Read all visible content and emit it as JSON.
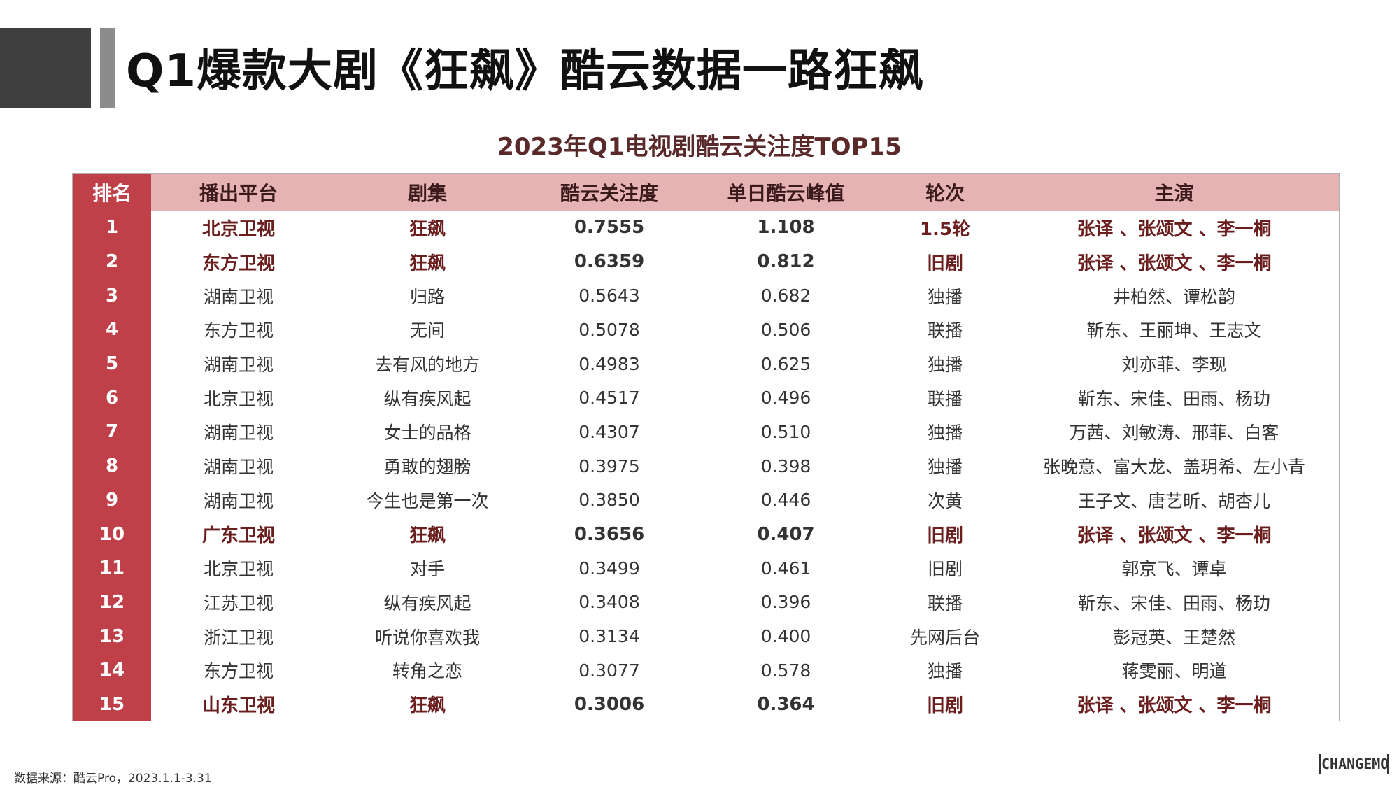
{
  "page": {
    "title": "Q1爆款大剧《狂飙》酷云数据一路狂飙",
    "source_note": "数据来源：酷云Pro，2023.1.1-3.31",
    "logo_text": "CHANGEMO"
  },
  "table": {
    "title": "2023年Q1电视剧酷云关注度TOP15",
    "headers": [
      "排名",
      "播出平台",
      "剧集",
      "酷云关注度",
      "单日酷云峰值",
      "轮次",
      "主演"
    ],
    "rows": [
      {
        "rank": "1",
        "platform": "北京卫视",
        "drama": "狂飙",
        "attention": "0.7555",
        "peak": "1.108",
        "round": "1.5轮",
        "cast": "张译 、张颂文 、李一桐",
        "highlight": true
      },
      {
        "rank": "2",
        "platform": "东方卫视",
        "drama": "狂飙",
        "attention": "0.6359",
        "peak": "0.812",
        "round": "旧剧",
        "cast": "张译 、张颂文 、李一桐",
        "highlight": true
      },
      {
        "rank": "3",
        "platform": "湖南卫视",
        "drama": "归路",
        "attention": "0.5643",
        "peak": "0.682",
        "round": "独播",
        "cast": "井柏然、谭松韵",
        "highlight": false
      },
      {
        "rank": "4",
        "platform": "东方卫视",
        "drama": "无间",
        "attention": "0.5078",
        "peak": "0.506",
        "round": "联播",
        "cast": "靳东、王丽坤、王志文",
        "highlight": false
      },
      {
        "rank": "5",
        "platform": "湖南卫视",
        "drama": "去有风的地方",
        "attention": "0.4983",
        "peak": "0.625",
        "round": "独播",
        "cast": "刘亦菲、李现",
        "highlight": false
      },
      {
        "rank": "6",
        "platform": "北京卫视",
        "drama": "纵有疾风起",
        "attention": "0.4517",
        "peak": "0.496",
        "round": "联播",
        "cast": "靳东、宋佳、田雨、杨玏",
        "highlight": false
      },
      {
        "rank": "7",
        "platform": "湖南卫视",
        "drama": "女士的品格",
        "attention": "0.4307",
        "peak": "0.510",
        "round": "独播",
        "cast": "万茜、刘敏涛、邢菲、白客",
        "highlight": false
      },
      {
        "rank": "8",
        "platform": "湖南卫视",
        "drama": "勇敢的翅膀",
        "attention": "0.3975",
        "peak": "0.398",
        "round": "独播",
        "cast": "张晚意、富大龙、盖玥希、左小青",
        "highlight": false
      },
      {
        "rank": "9",
        "platform": "湖南卫视",
        "drama": "今生也是第一次",
        "attention": "0.3850",
        "peak": "0.446",
        "round": "次黄",
        "cast": "王子文、唐艺昕、胡杏儿",
        "highlight": false
      },
      {
        "rank": "10",
        "platform": "广东卫视",
        "drama": "狂飙",
        "attention": "0.3656",
        "peak": "0.407",
        "round": "旧剧",
        "cast": "张译 、张颂文 、李一桐",
        "highlight": true
      },
      {
        "rank": "11",
        "platform": "北京卫视",
        "drama": "对手",
        "attention": "0.3499",
        "peak": "0.461",
        "round": "旧剧",
        "cast": "郭京飞、谭卓",
        "highlight": false
      },
      {
        "rank": "12",
        "platform": "江苏卫视",
        "drama": "纵有疾风起",
        "attention": "0.3408",
        "peak": "0.396",
        "round": "联播",
        "cast": "靳东、宋佳、田雨、杨玏",
        "highlight": false
      },
      {
        "rank": "13",
        "platform": "浙江卫视",
        "drama": "听说你喜欢我",
        "attention": "0.3134",
        "peak": "0.400",
        "round": "先网后台",
        "cast": "彭冠英、王楚然",
        "highlight": false
      },
      {
        "rank": "14",
        "platform": "东方卫视",
        "drama": "转角之恋",
        "attention": "0.3077",
        "peak": "0.578",
        "round": "独播",
        "cast": "蒋雯丽、明道",
        "highlight": false
      },
      {
        "rank": "15",
        "platform": "山东卫视",
        "drama": "狂飙",
        "attention": "0.3006",
        "peak": "0.364",
        "round": "旧剧",
        "cast": "张译 、张颂文 、李一桐",
        "highlight": true
      }
    ]
  }
}
